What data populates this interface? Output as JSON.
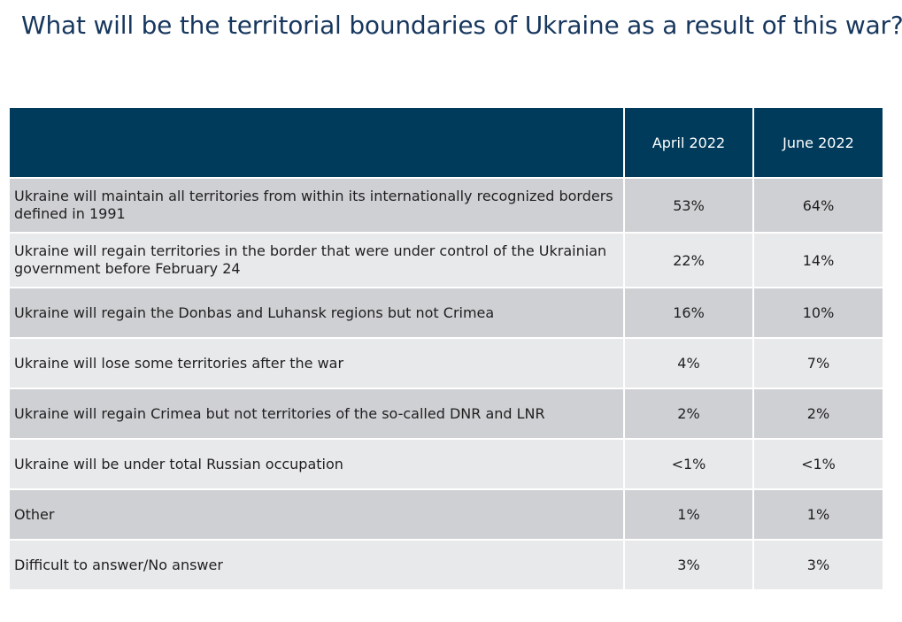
{
  "title": "What will be the territorial boundaries of Ukraine as a result of this war?",
  "table": {
    "columns": [
      "",
      "April 2022",
      "June 2022"
    ],
    "rows": [
      {
        "answer": "Ukraine will maintain all territories from within its internationally recognized borders defined in 1991",
        "april": "53%",
        "june": "64%"
      },
      {
        "answer": "Ukraine will regain territories in the border that were under control of the Ukrainian government before February 24",
        "april": "22%",
        "june": "14%"
      },
      {
        "answer": "Ukraine will regain the Donbas and Luhansk regions but not Crimea",
        "april": "16%",
        "june": "10%"
      },
      {
        "answer": "Ukraine will lose some territories after the war",
        "april": "4%",
        "june": "7%"
      },
      {
        "answer": "Ukraine will regain Crimea but not territories of the so-called DNR and LNR",
        "april": "2%",
        "june": "2%"
      },
      {
        "answer": "Ukraine will be under total Russian occupation",
        "april": "<1%",
        "june": "<1%"
      },
      {
        "answer": "Other",
        "april": "1%",
        "june": "1%"
      },
      {
        "answer": "Difficult to answer/No answer",
        "april": "3%",
        "june": "3%"
      }
    ]
  },
  "colors": {
    "header_bg": "#003b5c",
    "title_text": "#17375e",
    "row_dark": "#cfd0d3",
    "row_light": "#e8e9eb"
  }
}
